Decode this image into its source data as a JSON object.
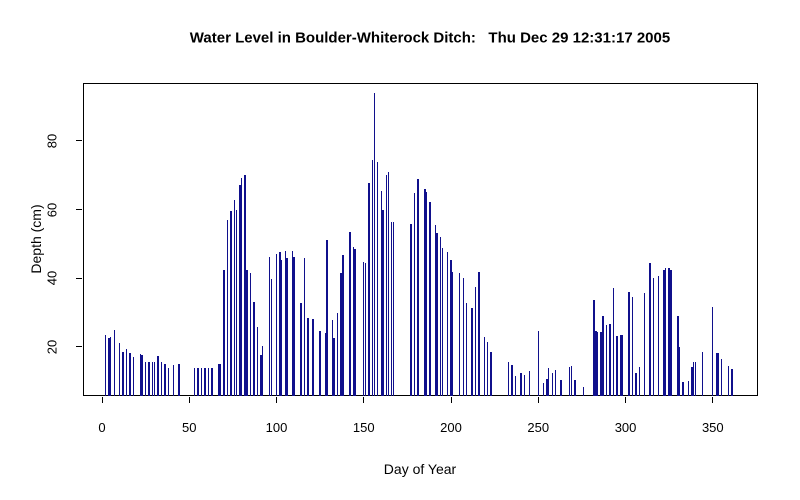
{
  "chart_data": {
    "type": "bar",
    "title": "Water Level in Boulder-Whiterock Ditch:   Thu Dec 29 12:31:17 2005",
    "xlabel": "Day of Year",
    "ylabel": "Depth (cm)",
    "x_ticks": [
      0,
      50,
      100,
      150,
      200,
      250,
      300,
      350
    ],
    "y_ticks": [
      20,
      40,
      60,
      80
    ],
    "xlim": [
      -10.9,
      375.9
    ],
    "ylim": [
      5.6,
      96.9
    ],
    "grid": false,
    "bar_color": "#10108c",
    "axis_color": "#000000",
    "background_color": "#ffffff",
    "points": [
      [
        2,
        23.4
      ],
      [
        4,
        22.4
      ],
      [
        5,
        22.8
      ],
      [
        7,
        24.9
      ],
      [
        10,
        21.0
      ],
      [
        12,
        18.4
      ],
      [
        14,
        19.3
      ],
      [
        16,
        18.0
      ],
      [
        18,
        17.0
      ],
      [
        22,
        17.8
      ],
      [
        23,
        17.6
      ],
      [
        25,
        15.6
      ],
      [
        27,
        15.6
      ],
      [
        29,
        15.6
      ],
      [
        30,
        15.6
      ],
      [
        32,
        17.4
      ],
      [
        34,
        15.4
      ],
      [
        36,
        14.9
      ],
      [
        38,
        13.7
      ],
      [
        41,
        14.5
      ],
      [
        44,
        14.9
      ],
      [
        53,
        13.7
      ],
      [
        55,
        13.7
      ],
      [
        57,
        13.7
      ],
      [
        59,
        13.7
      ],
      [
        61,
        13.7
      ],
      [
        63,
        13.7
      ],
      [
        67,
        14.9
      ],
      [
        68,
        14.9
      ],
      [
        70,
        42.4
      ],
      [
        72,
        57.0
      ],
      [
        74,
        59.5
      ],
      [
        76,
        62.8
      ],
      [
        77,
        59.9
      ],
      [
        79,
        67.2
      ],
      [
        80,
        69.1
      ],
      [
        82,
        70.1
      ],
      [
        83,
        42.4
      ],
      [
        85,
        41.6
      ],
      [
        87,
        33.1
      ],
      [
        89,
        25.7
      ],
      [
        91,
        17.6
      ],
      [
        92,
        20.2
      ],
      [
        96,
        46.2
      ],
      [
        97,
        39.6
      ],
      [
        100,
        47.0
      ],
      [
        102,
        47.7
      ],
      [
        103,
        45.3
      ],
      [
        105,
        48.0
      ],
      [
        106,
        45.8
      ],
      [
        109,
        48.0
      ],
      [
        110,
        46.1
      ],
      [
        114,
        32.8
      ],
      [
        116,
        45.8
      ],
      [
        118,
        28.3
      ],
      [
        121,
        28.1
      ],
      [
        125,
        24.6
      ],
      [
        128,
        23.9
      ],
      [
        129,
        51.1
      ],
      [
        132,
        27.8
      ],
      [
        133,
        22.6
      ],
      [
        135,
        29.7
      ],
      [
        137,
        41.4
      ],
      [
        138,
        46.7
      ],
      [
        142,
        53.5
      ],
      [
        144,
        49.2
      ],
      [
        145,
        48.4
      ],
      [
        150,
        44.8
      ],
      [
        151,
        44.5
      ],
      [
        153,
        67.7
      ],
      [
        155,
        74.5
      ],
      [
        156,
        94.0
      ],
      [
        158,
        73.8
      ],
      [
        160,
        65.4
      ],
      [
        161,
        60.0
      ],
      [
        163,
        70.1
      ],
      [
        164,
        70.9
      ],
      [
        166,
        56.5
      ],
      [
        167,
        56.5
      ],
      [
        177,
        55.8
      ],
      [
        179,
        64.7
      ],
      [
        181,
        68.8
      ],
      [
        185,
        65.9
      ],
      [
        186,
        65.2
      ],
      [
        188,
        62.3
      ],
      [
        191,
        55.5
      ],
      [
        192,
        53.2
      ],
      [
        194,
        51.9
      ],
      [
        195,
        48.7
      ],
      [
        198,
        47.7
      ],
      [
        200,
        45.3
      ],
      [
        201,
        41.9
      ],
      [
        205,
        41.4
      ],
      [
        207,
        39.9
      ],
      [
        209,
        32.6
      ],
      [
        212,
        31.2
      ],
      [
        214,
        37.5
      ],
      [
        216,
        41.9
      ],
      [
        219,
        22.9
      ],
      [
        221,
        21.4
      ],
      [
        223,
        18.5
      ],
      [
        233,
        15.6
      ],
      [
        235,
        14.6
      ],
      [
        237,
        11.3
      ],
      [
        240,
        12.4
      ],
      [
        242,
        11.7
      ],
      [
        245,
        12.9
      ],
      [
        250,
        24.6
      ],
      [
        253,
        9.3
      ],
      [
        255,
        10.7
      ],
      [
        256,
        13.7
      ],
      [
        258,
        12.4
      ],
      [
        260,
        13.2
      ],
      [
        263,
        10.4
      ],
      [
        268,
        14.2
      ],
      [
        269,
        14.3
      ],
      [
        271,
        10.4
      ],
      [
        276,
        8.2
      ],
      [
        282,
        33.6
      ],
      [
        283,
        24.7
      ],
      [
        284,
        24.4
      ],
      [
        286,
        24.3
      ],
      [
        287,
        29.0
      ],
      [
        289,
        26.3
      ],
      [
        291,
        26.6
      ],
      [
        293,
        37.0
      ],
      [
        295,
        23.0
      ],
      [
        297,
        23.3
      ],
      [
        298,
        23.5
      ],
      [
        302,
        35.9
      ],
      [
        304,
        34.4
      ],
      [
        306,
        12.3
      ],
      [
        308,
        14.0
      ],
      [
        311,
        35.6
      ],
      [
        314,
        44.5
      ],
      [
        316,
        39.9
      ],
      [
        319,
        40.6
      ],
      [
        322,
        42.4
      ],
      [
        323,
        42.9
      ],
      [
        325,
        42.9
      ],
      [
        326,
        42.4
      ],
      [
        330,
        28.8
      ],
      [
        331,
        20.0
      ],
      [
        333,
        9.8
      ],
      [
        336,
        10.0
      ],
      [
        338,
        14.2
      ],
      [
        339,
        15.5
      ],
      [
        340,
        15.5
      ],
      [
        344,
        18.5
      ],
      [
        350,
        31.7
      ],
      [
        352,
        18.2
      ],
      [
        353,
        18.0
      ],
      [
        355,
        16.3
      ],
      [
        359,
        14.4
      ],
      [
        361,
        13.4
      ]
    ]
  }
}
